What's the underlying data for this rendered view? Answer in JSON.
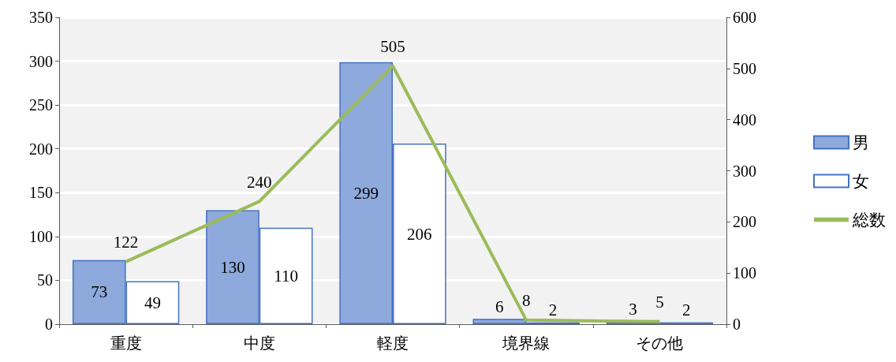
{
  "chart_data": {
    "type": "bar",
    "categories": [
      "重度",
      "中度",
      "軽度",
      "境界線",
      "その他"
    ],
    "series": [
      {
        "name": "男",
        "color": "#8ea9db",
        "values": [
          73,
          130,
          299,
          6,
          3
        ]
      },
      {
        "name": "女",
        "color": "#ffffff",
        "values": [
          49,
          110,
          206,
          2,
          2
        ]
      },
      {
        "name": "総数",
        "type": "line",
        "axis": "y2",
        "color": "#9bbb59",
        "values": [
          122,
          240,
          505,
          8,
          5
        ]
      }
    ],
    "ylim": [
      0,
      350
    ],
    "yticks": [
      0,
      50,
      100,
      150,
      200,
      250,
      300,
      350
    ],
    "y2lim": [
      0,
      600
    ],
    "y2ticks": [
      0,
      100,
      200,
      300,
      400,
      500,
      600
    ],
    "data_labels": true,
    "legend": "right",
    "grid": "y",
    "marker": "none",
    "line_style": "solid"
  }
}
